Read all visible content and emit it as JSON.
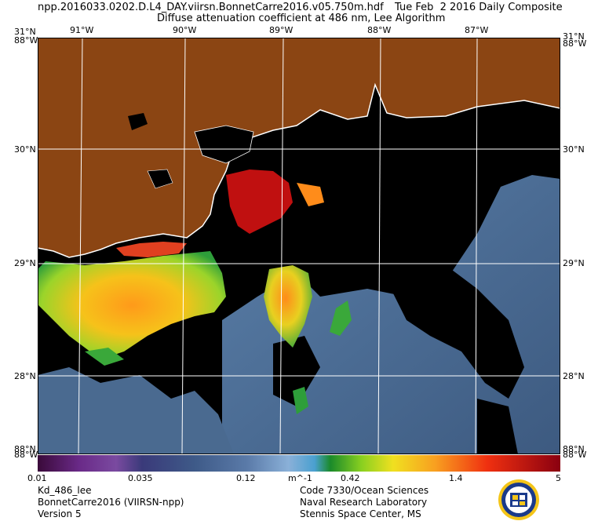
{
  "header": {
    "filename": "npp.2016033.0202.D.L4_DAY.viirsn.BonnetCarre2016.v05.750m.hdf",
    "date": "Tue Feb  2 2016 Daily Composite",
    "subtitle": "Diffuse attenuation coefficient at 486 nm, Lee Algorithm"
  },
  "map": {
    "lon_labels": [
      "91°W",
      "90°W",
      "89°W",
      "88°W",
      "87°W"
    ],
    "lat_labels": [
      "30°N",
      "29°N",
      "28°N"
    ],
    "corner_labels": {
      "top_left_lat": "31°N",
      "top_left_lon": "88°W",
      "top_right_lat": "31°N",
      "top_right_lon": "88°W",
      "bottom_left_lat": "88°N",
      "bottom_left_lon": "88°W",
      "bottom_right_lat": "88°N",
      "bottom_right_lon": "88°W"
    },
    "colors": {
      "land": "#8b4513",
      "no_data": "#000000",
      "coast": "#ffffff",
      "grid": "#ffffff"
    }
  },
  "colorbar": {
    "tick_labels": [
      "0.01",
      "0.035",
      "0.12",
      "m^-1",
      "0.42",
      "1.4",
      "5"
    ],
    "scale": "log",
    "range": [
      0.01,
      5
    ]
  },
  "footer": {
    "left": [
      "Kd_486_lee",
      "BonnetCarre2016 (VIIRSN-npp)",
      "Version 5"
    ],
    "center": [
      "Code 7330/Ocean Sciences",
      "Naval Research Laboratory",
      "Stennis Space Center, MS"
    ]
  },
  "logo": {
    "name": "nrl-seal-logo"
  }
}
